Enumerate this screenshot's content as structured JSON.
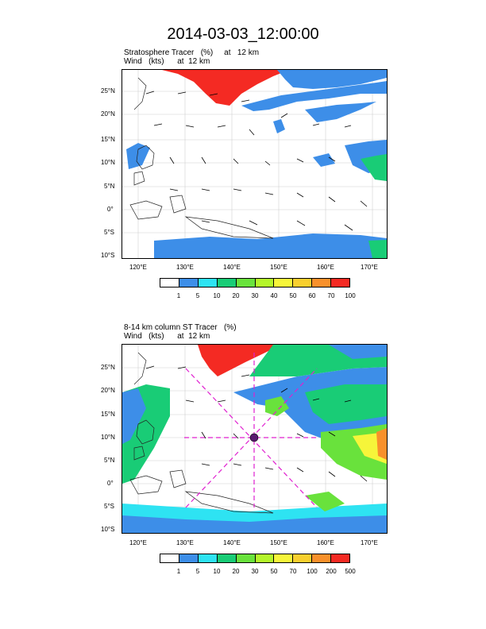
{
  "title": "2014-03-03_12:00:00",
  "panel1": {
    "line1": "Stratosphere Tracer   (%)     at   12 km",
    "line2": "Wind   (kts)      at  12 km",
    "colorbar": {
      "labels": [
        "1",
        "5",
        "10",
        "20",
        "30",
        "40",
        "50",
        "60",
        "70",
        "100"
      ],
      "colors": [
        "#ffffff",
        "#3d8ee8",
        "#2ee3f2",
        "#19cc76",
        "#69e23c",
        "#b4f52a",
        "#f6f53a",
        "#f8cf2e",
        "#f8902b",
        "#f42a23"
      ]
    }
  },
  "panel2": {
    "line1": "8-14 km column ST Tracer   (%)",
    "line2": "Wind   (kts)      at  12 km",
    "colorbar": {
      "labels": [
        "1",
        "5",
        "10",
        "20",
        "30",
        "50",
        "70",
        "100",
        "200",
        "500"
      ],
      "colors": [
        "#ffffff",
        "#3d8ee8",
        "#2ee3f2",
        "#19cc76",
        "#69e23c",
        "#b4f52a",
        "#f6f53a",
        "#f8cf2e",
        "#f8902b",
        "#f42a23"
      ]
    }
  },
  "axes": {
    "lat_labels": [
      "25°N",
      "20°N",
      "15°N",
      "10°N",
      "5°N",
      "0°",
      "5°S",
      "10°S"
    ],
    "lon_labels": [
      "120°E",
      "130°E",
      "140°E",
      "150°E",
      "160°E",
      "170°E"
    ]
  }
}
